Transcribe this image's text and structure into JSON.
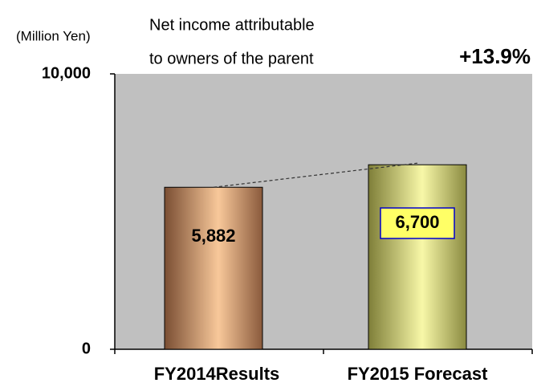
{
  "chart_data": {
    "type": "bar",
    "title_lines": [
      "Net income attributable",
      "to owners of the parent"
    ],
    "unit_label": "(Million Yen)",
    "annotation": "+13.9%",
    "categories": [
      "FY2014Results",
      "FY2015 Forecast"
    ],
    "values": [
      5882,
      6700
    ],
    "value_labels": [
      "5,882",
      "6,700"
    ],
    "ylim": [
      0,
      10000
    ],
    "yticks": [
      0,
      {
        "value": 10000,
        "label": "10,000"
      }
    ],
    "plot_color": "#c0c0c0"
  }
}
